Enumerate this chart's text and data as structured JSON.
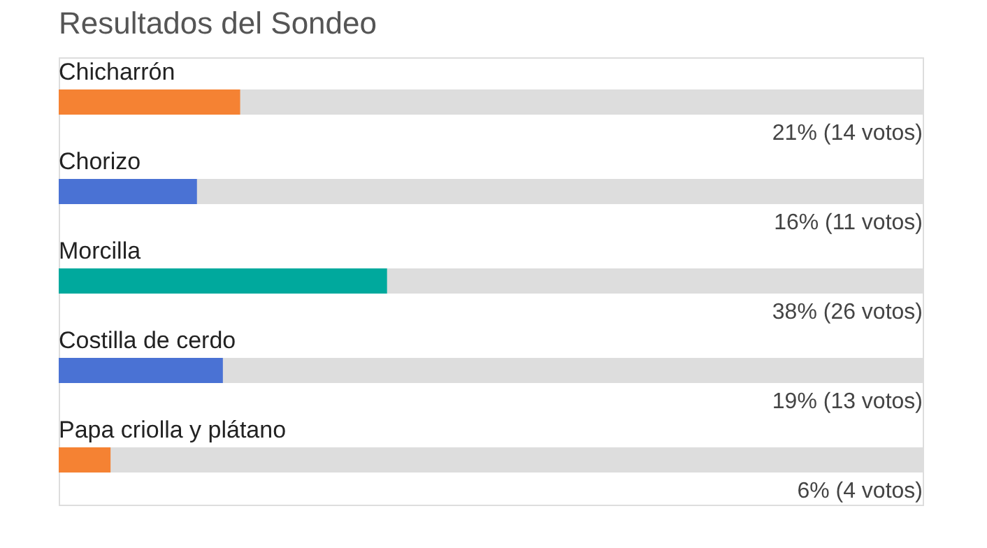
{
  "chart_data": {
    "type": "bar",
    "orientation": "horizontal",
    "title": "Resultados del Sondeo",
    "categories": [
      "Chicharrón",
      "Chorizo",
      "Morcilla",
      "Costilla de cerdo",
      "Papa criolla y plátano"
    ],
    "values": [
      21,
      16,
      38,
      19,
      6
    ],
    "colors": [
      "#f58233",
      "#4a72d4",
      "#00a99d",
      "#4a72d4",
      "#f58233"
    ],
    "value_labels": [
      "21% (14 votos)",
      "16% (11 votos)",
      "38% (26 votos)",
      "19% (13 votos)",
      "6% (4 votos)"
    ],
    "xlim": [
      0,
      100
    ]
  }
}
